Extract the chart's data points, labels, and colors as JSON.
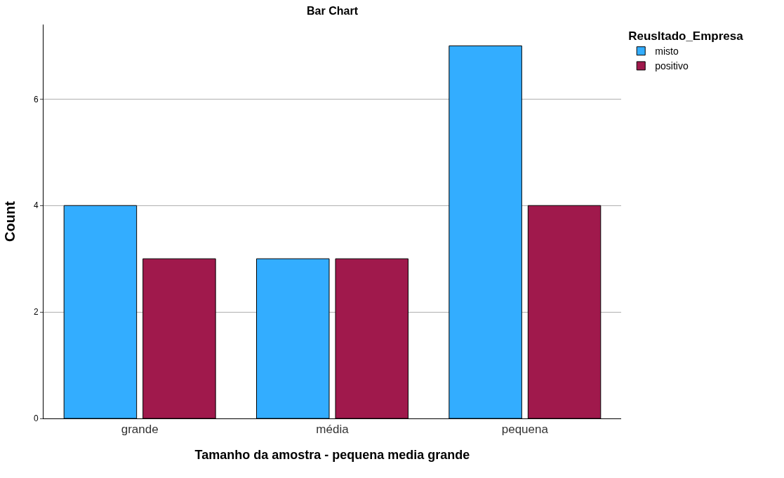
{
  "chart_data": {
    "type": "bar",
    "title": "Bar Chart",
    "xlabel": "Tamanho da amostra - pequena media grande",
    "ylabel": "Count",
    "legend_title": "Reusltado_Empresa",
    "categories": [
      "grande",
      "média",
      "pequena"
    ],
    "series": [
      {
        "name": "misto",
        "color": "#33adff",
        "values": [
          4,
          3,
          7
        ]
      },
      {
        "name": "positivo",
        "color": "#a0194c",
        "values": [
          3,
          3,
          4
        ]
      }
    ],
    "ylim": [
      0,
      7.4
    ],
    "yticks": [
      0,
      2,
      4,
      6
    ],
    "grid": "y",
    "legend": "top right"
  }
}
